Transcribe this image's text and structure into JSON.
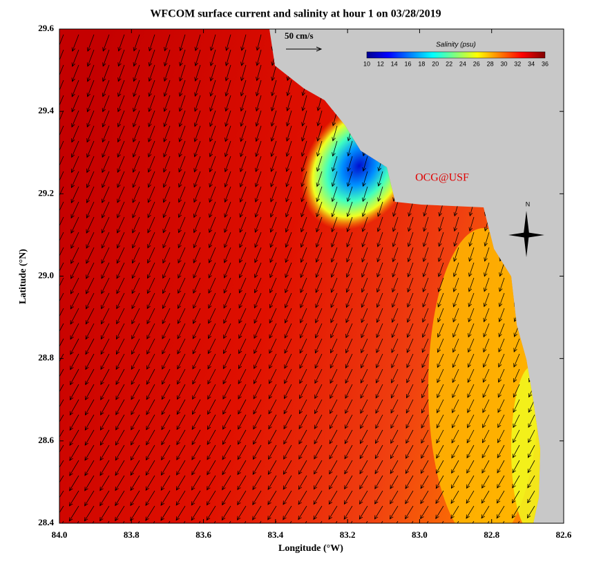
{
  "title": "WFCOM surface current and salinity at hour 1 on 03/28/2019",
  "x_axis": {
    "label": "Longitude (°W)",
    "ticks": [
      "84.0",
      "83.8",
      "83.6",
      "83.4",
      "83.2",
      "83.0",
      "82.8",
      "82.6"
    ]
  },
  "y_axis": {
    "label": "Latitude (°N)",
    "ticks": [
      "29.6",
      "29.4",
      "29.2",
      "29.0",
      "28.8",
      "28.6",
      "28.4"
    ]
  },
  "colorbar": {
    "title": "Salinity (psu)",
    "ticks": [
      "10",
      "12",
      "14",
      "16",
      "18",
      "20",
      "22",
      "24",
      "26",
      "28",
      "30",
      "32",
      "34",
      "36"
    ]
  },
  "scale_label": "50 cm/s",
  "credit": "OCG@USF",
  "compass": "N"
}
